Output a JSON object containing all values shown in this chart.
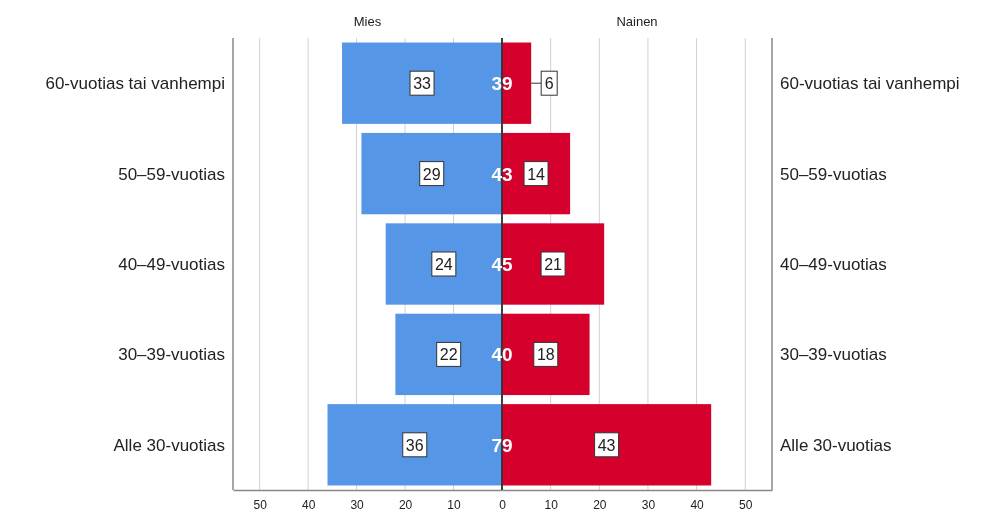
{
  "chart_data": [
    {
      "type": "bar",
      "orientation": "horizontal",
      "title": "Mies",
      "categories": [
        "60-vuotias tai vanhempi",
        "50–59-vuotias",
        "40–49-vuotias",
        "30–39-vuotias",
        "Alle 30-vuotias"
      ],
      "series": [
        {
          "color": "#5596e6",
          "values": [
            33,
            29,
            24,
            22,
            36
          ]
        }
      ],
      "data_labels": true,
      "annotations": [
        {
          "text": "39",
          "y": "60-vuotias tai vanhempi"
        },
        {
          "text": "43",
          "y": "50–59-vuotias"
        },
        {
          "text": "45",
          "y": "40–49-vuotias"
        },
        {
          "text": "40",
          "y": "30–39-vuotias"
        },
        {
          "text": "79",
          "y": "Alle 30-vuotias"
        }
      ],
      "xlim": [
        55.5,
        0
      ],
      "xticks": [
        50,
        40,
        30,
        20,
        10,
        0
      ],
      "grid": "x"
    },
    {
      "type": "bar",
      "orientation": "horizontal",
      "title": "Nainen",
      "categories": [
        "60-vuotias tai vanhempi",
        "50–59-vuotias",
        "40–49-vuotias",
        "30–39-vuotias",
        "Alle 30-vuotias"
      ],
      "series": [
        {
          "color": "#d5002c",
          "values": [
            6,
            14,
            21,
            18,
            43
          ]
        }
      ],
      "data_labels": true,
      "xlim": [
        0,
        55.5
      ],
      "xticks": [
        {
          "value": 0,
          "label": null
        },
        10,
        20,
        30,
        40,
        50
      ],
      "grid": "x"
    }
  ]
}
